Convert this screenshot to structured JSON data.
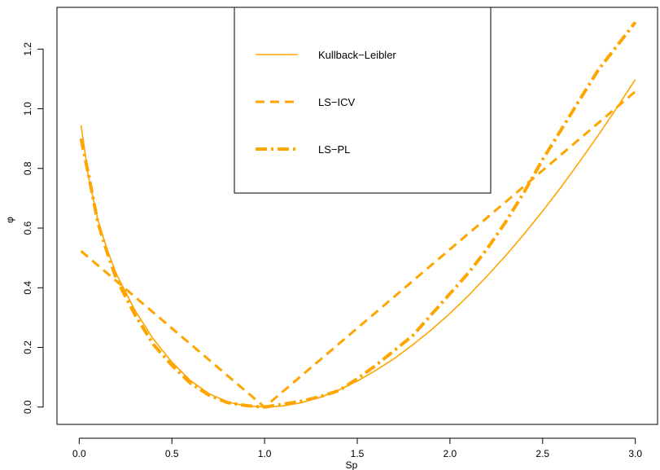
{
  "chart_data": {
    "type": "line",
    "title": "",
    "xlabel": "Sp",
    "ylabel": "φ",
    "xlim": [
      -0.12,
      3.12
    ],
    "ylim": [
      -0.058,
      1.34
    ],
    "xticks": [
      0.0,
      0.5,
      1.0,
      1.5,
      2.0,
      2.5,
      3.0
    ],
    "xtick_labels": [
      "0.0",
      "0.5",
      "1.0",
      "1.5",
      "2.0",
      "2.5",
      "3.0"
    ],
    "yticks": [
      0.0,
      0.2,
      0.4,
      0.6,
      0.8,
      1.0,
      1.2
    ],
    "ytick_labels": [
      "0.0",
      "0.2",
      "0.4",
      "0.6",
      "0.8",
      "1.0",
      "1.2"
    ],
    "grid": false,
    "legend_position": "top-center",
    "series": [
      {
        "name": "Kullback−Leibler",
        "style": "solid",
        "color": "#FFA500",
        "x": [
          0.01,
          0.05,
          0.1,
          0.15,
          0.2,
          0.3,
          0.4,
          0.5,
          0.6,
          0.7,
          0.8,
          0.9,
          1.0,
          1.1,
          1.2,
          1.3,
          1.4,
          1.5,
          1.6,
          1.7,
          1.8,
          1.9,
          2.0,
          2.1,
          2.2,
          2.3,
          2.4,
          2.5,
          2.6,
          2.7,
          2.8,
          2.9,
          3.0
        ],
        "y": [
          0.945,
          0.773,
          0.628,
          0.529,
          0.447,
          0.325,
          0.228,
          0.151,
          0.089,
          0.045,
          0.017,
          0.004,
          0.0,
          0.004,
          0.015,
          0.033,
          0.057,
          0.087,
          0.123,
          0.163,
          0.209,
          0.259,
          0.314,
          0.374,
          0.439,
          0.507,
          0.58,
          0.657,
          0.738,
          0.823,
          0.911,
          1.003,
          1.098
        ]
      },
      {
        "name": "LS−ICV",
        "style": "dashed",
        "color": "#FFA500",
        "x": [
          0.01,
          1.0,
          3.0
        ],
        "y": [
          0.523,
          0.0,
          1.058
        ]
      },
      {
        "name": "LS−PL",
        "style": "dashdot",
        "color": "#FFA500",
        "x": [
          0.01,
          0.05,
          0.1,
          0.15,
          0.2,
          0.3,
          0.4,
          0.5,
          0.6,
          0.7,
          0.8,
          0.9,
          1.0,
          1.1,
          1.2,
          1.3,
          1.4,
          1.5,
          1.6,
          1.7,
          1.8,
          1.9,
          2.0,
          2.1,
          2.2,
          2.3,
          2.4,
          2.5,
          2.6,
          2.7,
          2.8,
          2.9,
          3.0
        ],
        "y": [
          0.9,
          0.78,
          0.62,
          0.52,
          0.43,
          0.31,
          0.21,
          0.14,
          0.08,
          0.04,
          0.015,
          0.005,
          0.0,
          0.01,
          0.02,
          0.035,
          0.055,
          0.095,
          0.14,
          0.19,
          0.24,
          0.31,
          0.38,
          0.45,
          0.53,
          0.62,
          0.72,
          0.83,
          0.93,
          1.03,
          1.13,
          1.21,
          1.29
        ]
      }
    ]
  }
}
